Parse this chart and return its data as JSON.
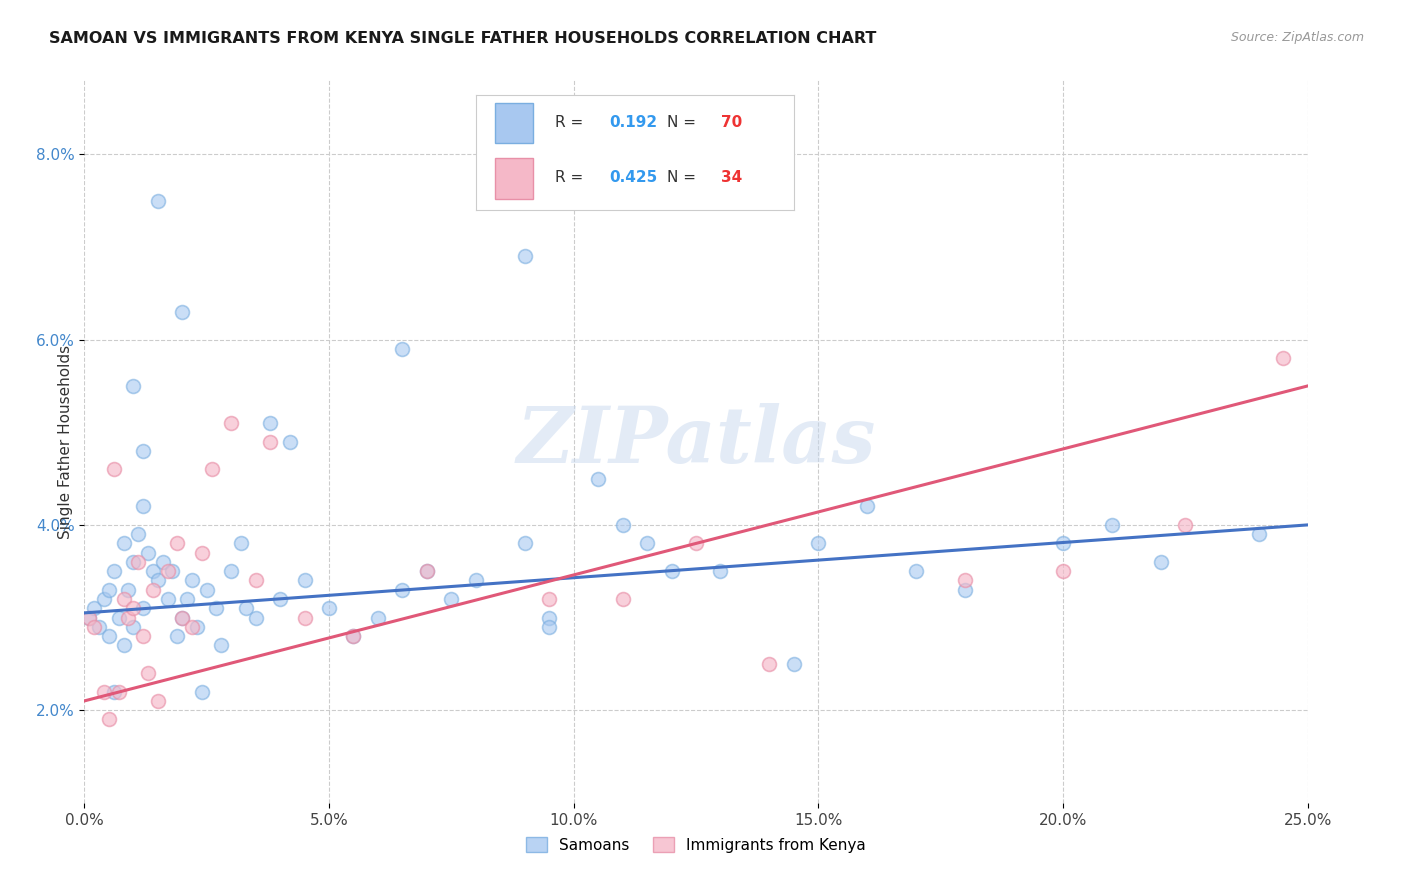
{
  "title": "SAMOAN VS IMMIGRANTS FROM KENYA SINGLE FATHER HOUSEHOLDS CORRELATION CHART",
  "source": "Source: ZipAtlas.com",
  "ylabel": "Single Father Households",
  "xlabel_vals": [
    0.0,
    5.0,
    10.0,
    15.0,
    20.0,
    25.0
  ],
  "ylabel_vals": [
    2.0,
    4.0,
    6.0,
    8.0
  ],
  "xlim": [
    0.0,
    25.0
  ],
  "ylim": [
    1.0,
    8.8
  ],
  "watermark": "ZIPatlas",
  "legend_samoans_R": "0.192",
  "legend_samoans_N": "70",
  "legend_kenya_R": "0.425",
  "legend_kenya_N": "34",
  "blue_fill": "#a8c8f0",
  "blue_edge": "#7aaee0",
  "pink_fill": "#f5b8c8",
  "pink_edge": "#e890a8",
  "blue_line_color": "#4472c4",
  "pink_line_color": "#e05878",
  "blue_reg_start_y": 3.05,
  "blue_reg_end_y": 4.0,
  "pink_reg_start_y": 2.1,
  "pink_reg_end_y": 5.5,
  "samoans_x": [
    0.1,
    0.2,
    0.3,
    0.4,
    0.5,
    0.5,
    0.6,
    0.7,
    0.8,
    0.8,
    0.9,
    1.0,
    1.0,
    1.1,
    1.2,
    1.2,
    1.3,
    1.4,
    1.5,
    1.6,
    1.7,
    1.8,
    1.9,
    2.0,
    2.1,
    2.2,
    2.3,
    2.5,
    2.7,
    2.8,
    3.0,
    3.2,
    3.3,
    3.5,
    4.0,
    4.5,
    5.0,
    5.5,
    6.0,
    6.5,
    7.0,
    7.5,
    8.0,
    9.0,
    9.5,
    10.5,
    11.0,
    12.0,
    14.5,
    16.0,
    17.0,
    18.0,
    20.0,
    21.0,
    22.0,
    24.0,
    1.5,
    2.0,
    3.8,
    6.5,
    9.0,
    1.0,
    0.6,
    1.2,
    2.4,
    4.2,
    9.5,
    11.5,
    13.0,
    15.0
  ],
  "samoans_y": [
    3.0,
    3.1,
    2.9,
    3.2,
    3.3,
    2.8,
    3.5,
    3.0,
    3.8,
    2.7,
    3.3,
    3.6,
    2.9,
    3.9,
    4.2,
    3.1,
    3.7,
    3.5,
    3.4,
    3.6,
    3.2,
    3.5,
    2.8,
    3.0,
    3.2,
    3.4,
    2.9,
    3.3,
    3.1,
    2.7,
    3.5,
    3.8,
    3.1,
    3.0,
    3.2,
    3.4,
    3.1,
    2.8,
    3.0,
    3.3,
    3.5,
    3.2,
    3.4,
    3.8,
    3.0,
    4.5,
    4.0,
    3.5,
    2.5,
    4.2,
    3.5,
    3.3,
    3.8,
    4.0,
    3.6,
    3.9,
    7.5,
    6.3,
    5.1,
    5.9,
    6.9,
    5.5,
    2.2,
    4.8,
    2.2,
    4.9,
    2.9,
    3.8,
    3.5,
    3.8
  ],
  "kenya_x": [
    0.1,
    0.2,
    0.4,
    0.5,
    0.7,
    0.8,
    0.9,
    1.0,
    1.1,
    1.2,
    1.4,
    1.5,
    1.7,
    1.9,
    2.0,
    2.2,
    2.4,
    2.6,
    3.0,
    3.5,
    3.8,
    4.5,
    5.5,
    7.0,
    9.5,
    11.0,
    12.5,
    14.0,
    18.0,
    20.0,
    22.5,
    0.6,
    1.3,
    24.5
  ],
  "kenya_y": [
    3.0,
    2.9,
    2.2,
    1.9,
    2.2,
    3.2,
    3.0,
    3.1,
    3.6,
    2.8,
    3.3,
    2.1,
    3.5,
    3.8,
    3.0,
    2.9,
    3.7,
    4.6,
    5.1,
    3.4,
    4.9,
    3.0,
    2.8,
    3.5,
    3.2,
    3.2,
    3.8,
    2.5,
    3.4,
    3.5,
    4.0,
    4.6,
    2.4,
    5.8
  ]
}
